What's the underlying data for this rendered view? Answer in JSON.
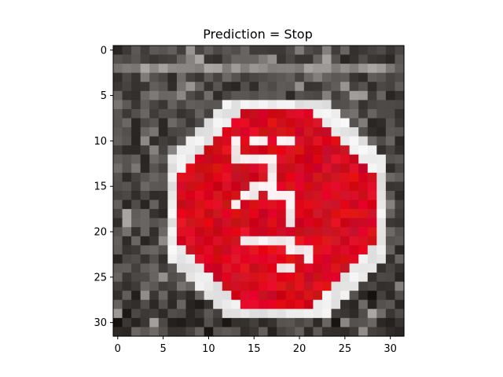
{
  "chart_data": {
    "type": "heatmap",
    "title": "Prediction = Stop",
    "xlabel": "",
    "ylabel": "",
    "x_ticks": [
      0,
      5,
      10,
      15,
      20,
      25,
      30
    ],
    "y_ticks": [
      0,
      5,
      10,
      15,
      20,
      25,
      30
    ],
    "xlim": [
      -0.5,
      31.5
    ],
    "ylim": [
      31.5,
      -0.5
    ],
    "grid": false,
    "image_size": [
      32,
      32
    ],
    "content": "32x32 pixel image of a red octagonal stop sign with white border and white lettering on a dark gray textured background",
    "colors": {
      "background": "#3a3a3a",
      "sign_red": "#d10f1a",
      "sign_border": "#f2f2f2",
      "letters": "#f4eef0"
    }
  }
}
